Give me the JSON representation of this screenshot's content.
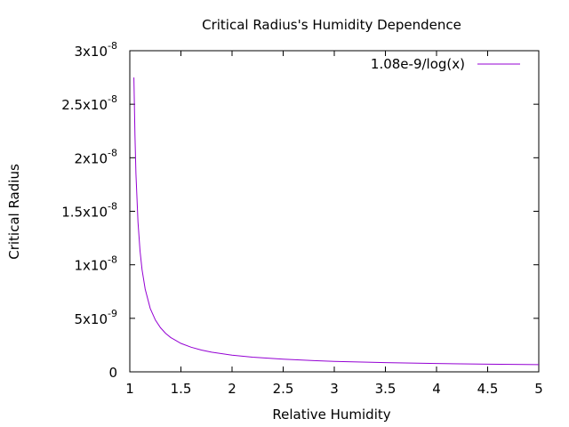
{
  "chart_data": {
    "type": "line",
    "title": "Critical Radius's Humidity Dependence",
    "xlabel": "Relative Humidity",
    "ylabel": "Critical Radius",
    "xlim": [
      1,
      5
    ],
    "ylim": [
      0,
      3e-08
    ],
    "grid": false,
    "legend_position": "top-right",
    "x_ticks": [
      {
        "value": 1,
        "label": "1"
      },
      {
        "value": 1.5,
        "label": "1.5"
      },
      {
        "value": 2,
        "label": "2"
      },
      {
        "value": 2.5,
        "label": "2.5"
      },
      {
        "value": 3,
        "label": "3"
      },
      {
        "value": 3.5,
        "label": "3.5"
      },
      {
        "value": 4,
        "label": "4"
      },
      {
        "value": 4.5,
        "label": "4.5"
      },
      {
        "value": 5,
        "label": "5"
      }
    ],
    "y_ticks": [
      {
        "value": 0,
        "base": "0",
        "exp": ""
      },
      {
        "value": 5e-09,
        "base": "5x10",
        "exp": "-9"
      },
      {
        "value": 1e-08,
        "base": "1x10",
        "exp": "-8"
      },
      {
        "value": 1.5e-08,
        "base": "1.5x10",
        "exp": "-8"
      },
      {
        "value": 2e-08,
        "base": "2x10",
        "exp": "-8"
      },
      {
        "value": 2.5e-08,
        "base": "2.5x10",
        "exp": "-8"
      },
      {
        "value": 3e-08,
        "base": "3x10",
        "exp": "-8"
      }
    ],
    "series": [
      {
        "name": "1.08e-9/log(x)",
        "color": "#9400d3",
        "x": [
          1.04,
          1.05,
          1.06,
          1.08,
          1.1,
          1.12,
          1.15,
          1.2,
          1.25,
          1.3,
          1.35,
          1.4,
          1.5,
          1.6,
          1.7,
          1.8,
          2.0,
          2.2,
          2.5,
          2.8,
          3.0,
          3.5,
          4.0,
          4.5,
          5.0
        ],
        "y": [
          2.75e-08,
          2.21e-08,
          1.85e-08,
          1.4e-08,
          1.13e-08,
          9.53e-09,
          7.73e-09,
          5.92e-09,
          4.84e-09,
          4.12e-09,
          3.6e-09,
          3.21e-09,
          2.66e-09,
          2.3e-09,
          2.04e-09,
          1.84e-09,
          1.56e-09,
          1.37e-09,
          1.18e-09,
          1.05e-09,
          9.83e-10,
          8.62e-10,
          7.79e-10,
          7.18e-10,
          6.71e-10
        ]
      }
    ]
  }
}
